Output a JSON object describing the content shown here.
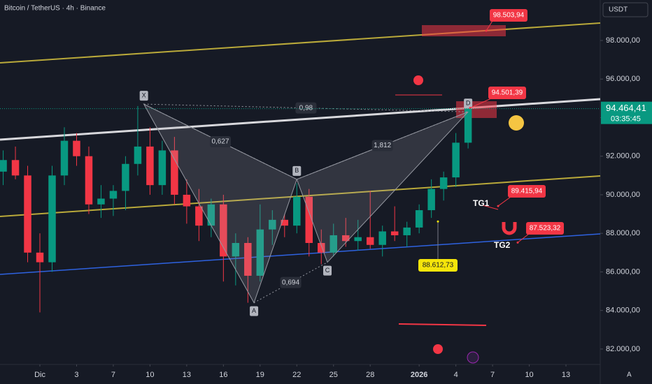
{
  "chart_data": {
    "type": "candlestick",
    "title": "Bitcoin / TetherUS · 4h · Binance",
    "currency": "USDT",
    "x": [
      -3,
      -2,
      -1,
      0,
      1,
      2,
      3,
      4,
      5,
      6,
      7,
      8,
      9,
      10,
      11,
      12,
      13,
      14,
      15,
      16,
      17,
      18,
      19,
      20,
      21,
      22,
      23,
      24,
      25,
      26,
      27,
      28,
      29,
      30,
      31,
      32,
      33,
      34,
      35
    ],
    "open": [
      91200,
      91800,
      91000,
      87000,
      86500,
      91000,
      92800,
      92000,
      89500,
      89800,
      90200,
      91600,
      92500,
      90500,
      92300,
      90000,
      89400,
      88400,
      89500,
      86800,
      87500,
      85800,
      88200,
      88700,
      88400,
      89900,
      87500,
      87000,
      87900,
      87600,
      87800,
      87400,
      88100,
      87900,
      88300,
      89200,
      90300,
      90900,
      92700
    ],
    "high": [
      92300,
      92500,
      91500,
      88000,
      91500,
      93500,
      93200,
      92500,
      90500,
      90500,
      92000,
      94600,
      93500,
      92800,
      93000,
      90800,
      90300,
      89800,
      90000,
      88000,
      87800,
      89500,
      89200,
      89000,
      90600,
      90300,
      88200,
      88500,
      88800,
      88700,
      90200,
      88400,
      89400,
      88600,
      89500,
      90800,
      91200,
      93200,
      94600
    ],
    "low": [
      90500,
      90800,
      86500,
      83900,
      86000,
      90500,
      91500,
      89000,
      88800,
      88900,
      89200,
      91000,
      90000,
      90000,
      89500,
      88500,
      87600,
      87800,
      85500,
      85300,
      84400,
      85500,
      87400,
      87800,
      88000,
      86800,
      86400,
      86800,
      87300,
      87100,
      87200,
      86800,
      87600,
      87300,
      88000,
      88800,
      89700,
      90400,
      92400
    ],
    "close": [
      91800,
      91000,
      87000,
      86500,
      91000,
      92800,
      92000,
      89500,
      89800,
      90200,
      91600,
      92500,
      90500,
      92300,
      90000,
      89400,
      88400,
      89500,
      86800,
      87500,
      85800,
      88200,
      88700,
      88400,
      89900,
      87500,
      87000,
      87900,
      87600,
      87800,
      87400,
      88100,
      87900,
      88300,
      89200,
      90300,
      90900,
      92700,
      94464.41
    ],
    "up_color": "#089981",
    "down_color": "#f23645",
    "xlim": [
      -3.26,
      45.8
    ],
    "xticks": [
      {
        "value": 0,
        "label": "Dic"
      },
      3,
      {
        "value": 6,
        "label": "7"
      },
      {
        "value": 9,
        "label": "10"
      },
      {
        "value": 12,
        "label": "13"
      },
      {
        "value": 15,
        "label": "16"
      },
      {
        "value": 18,
        "label": "19"
      },
      {
        "value": 21,
        "label": "22"
      },
      {
        "value": 24,
        "label": "25"
      },
      {
        "value": 27,
        "label": "28"
      },
      {
        "value": 31,
        "label": "2026"
      },
      {
        "value": 34,
        "label": "4"
      },
      {
        "value": 37,
        "label": "7"
      },
      {
        "value": 40,
        "label": "10"
      },
      {
        "value": 43,
        "label": "13"
      }
    ],
    "ylim": [
      81200,
      100100
    ],
    "yticks": [
      {
        "value": 82000,
        "label": "82.000,00"
      },
      {
        "value": 84000,
        "label": "84.000,00"
      },
      {
        "value": 86000,
        "label": "86.000,00"
      },
      {
        "value": 88000,
        "label": "88.000,00"
      },
      {
        "value": 90000,
        "label": "90.000,00"
      },
      {
        "value": 92000,
        "label": "92.000,00"
      },
      {
        "value": 94000,
        "label": "94.000,00"
      },
      {
        "value": 96000,
        "label": "96.000,00"
      },
      {
        "value": 98000,
        "label": "98.000,00"
      }
    ],
    "grid": false,
    "last_price": {
      "value": 94464.41,
      "label": "94.464,41"
    },
    "countdown": "03:35:45",
    "pattern": {
      "points": [
        {
          "label": "X",
          "x": 8.5,
          "y": 94700
        },
        {
          "label": "A",
          "x": 17.5,
          "y": 84400
        },
        {
          "label": "B",
          "x": 21,
          "y": 90800
        },
        {
          "label": "C",
          "x": 23.5,
          "y": 86500
        },
        {
          "label": "D",
          "x": 35,
          "y": 94300
        }
      ],
      "ratios": [
        "0,627",
        "0,98",
        "1,812",
        "0,694"
      ]
    },
    "annotations": [
      {
        "value": 98503.94,
        "label": "98.503,94"
      },
      {
        "value": 94501.39,
        "label": "94.501,39"
      },
      {
        "value": 89415.94,
        "label": "89.415,94"
      },
      {
        "value": 87523.32,
        "label": "87.523,32"
      },
      {
        "value": 88612.73,
        "label": "88.612,73"
      }
    ],
    "targets": [
      "TG1",
      "TG2"
    ]
  }
}
